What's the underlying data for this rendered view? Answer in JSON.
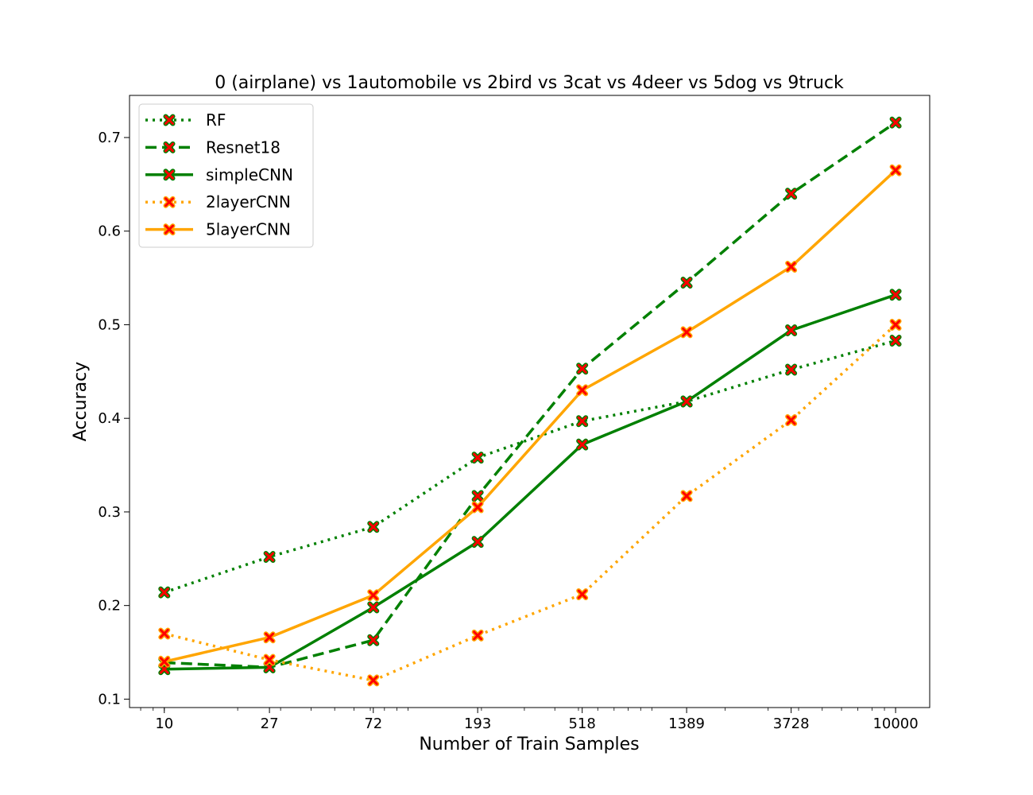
{
  "chart_data": {
    "type": "line",
    "title": "0 (airplane)  vs 1automobile vs 2bird vs 3cat vs 4deer vs 5dog vs 9truck",
    "xlabel": "Number of Train Samples",
    "ylabel": "Accuracy",
    "x_scale": "log",
    "x": [
      10,
      27,
      72,
      193,
      518,
      1389,
      3728,
      10000
    ],
    "x_tick_labels": [
      "10",
      "27",
      "72",
      "193",
      "518",
      "1389",
      "3728",
      "10000"
    ],
    "y_ticks": [
      0.1,
      0.2,
      0.3,
      0.4,
      0.5,
      0.6,
      0.7
    ],
    "y_tick_labels": [
      "0.1",
      "0.2",
      "0.3",
      "0.4",
      "0.5",
      "0.6",
      "0.7"
    ],
    "ylim": [
      0.091,
      0.745
    ],
    "xlim": [
      7.2,
      13800
    ],
    "grid": false,
    "legend_position": "top-left",
    "marker": "x",
    "marker_color": "#ff0000",
    "series": [
      {
        "name": "RF",
        "color": "#008000",
        "style": "dotted",
        "values": [
          0.214,
          0.252,
          0.284,
          0.358,
          0.397,
          0.418,
          0.452,
          0.483
        ]
      },
      {
        "name": "Resnet18",
        "color": "#008000",
        "style": "dashed",
        "values": [
          0.139,
          0.134,
          0.163,
          0.317,
          0.453,
          0.545,
          0.64,
          0.716
        ]
      },
      {
        "name": "simpleCNN",
        "color": "#008000",
        "style": "solid",
        "values": [
          0.132,
          0.134,
          0.198,
          0.268,
          0.372,
          0.418,
          0.494,
          0.532
        ]
      },
      {
        "name": "2layerCNN",
        "color": "#ffa500",
        "style": "dotted",
        "values": [
          0.17,
          0.142,
          0.12,
          0.168,
          0.212,
          0.317,
          0.398,
          0.5
        ]
      },
      {
        "name": "5layerCNN",
        "color": "#ffa500",
        "style": "solid",
        "values": [
          0.14,
          0.166,
          0.211,
          0.305,
          0.43,
          0.492,
          0.562,
          0.665
        ]
      }
    ]
  }
}
